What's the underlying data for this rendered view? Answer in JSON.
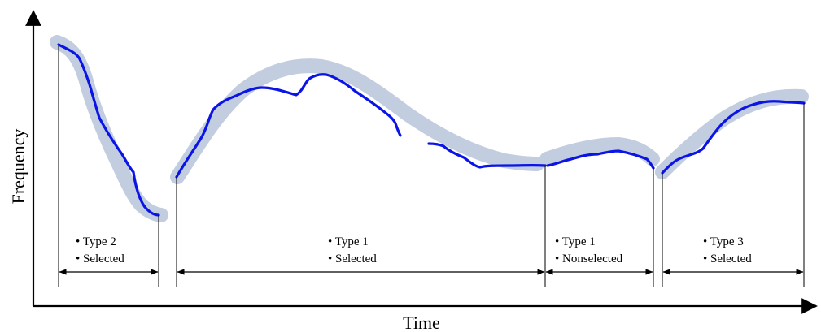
{
  "axes": {
    "x_label": "Time",
    "y_label": "Frequency"
  },
  "segments": [
    {
      "lines": [
        "• Type 2",
        "• Selected"
      ]
    },
    {
      "lines": [
        "• Type 1",
        "• Selected"
      ]
    },
    {
      "lines": [
        "• Type 1",
        "• Nonselected"
      ]
    },
    {
      "lines": [
        "• Type 3",
        "• Selected"
      ]
    }
  ],
  "colors": {
    "trajectory": "#0a14e6",
    "highlight": "#c3cde0",
    "axis": "#000000"
  }
}
